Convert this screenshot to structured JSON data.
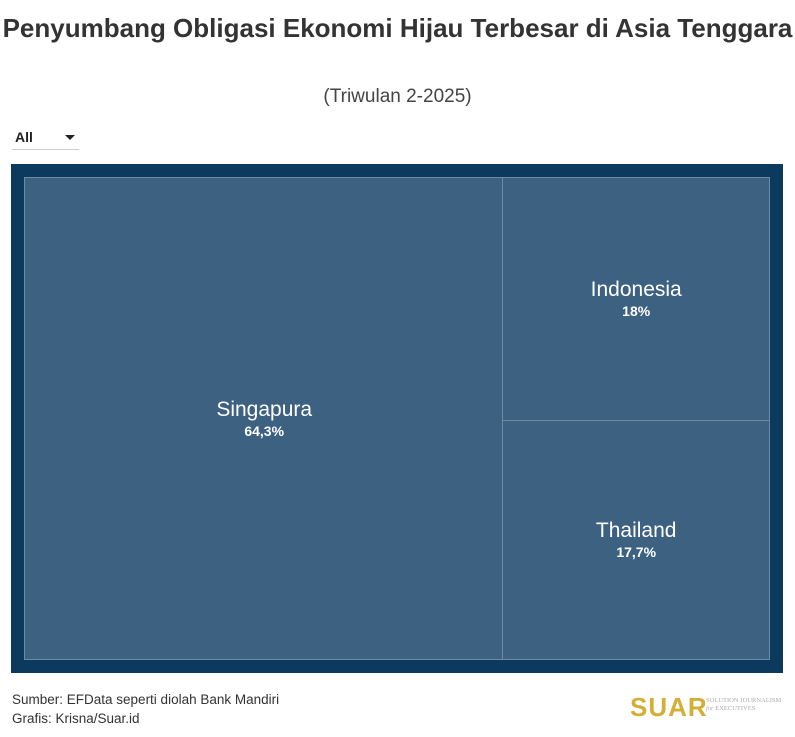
{
  "title": "Penyumbang Obligasi Ekonomi Hijau Terbesar di Asia Tenggara",
  "subtitle": "(Triwulan 2-2025)",
  "filter": {
    "selected": "All"
  },
  "chart_data": {
    "type": "treemap",
    "colors": {
      "frame": "#0b3a5e",
      "tile": "#3d6180"
    },
    "items": [
      {
        "label": "Singapura",
        "value": 64.3,
        "value_label": "64,3%"
      },
      {
        "label": "Indonesia",
        "value": 18,
        "value_label": "18%"
      },
      {
        "label": "Thailand",
        "value": 17.7,
        "value_label": "17,7%"
      }
    ]
  },
  "footer": {
    "source": "Sumber: EFData seperti diolah Bank Mandiri",
    "credit": "Grafis: Krisna/Suar.id"
  },
  "logo": {
    "text": "SUAR",
    "tagline1": "SOLUTION JOURNALISM",
    "tagline2": "for EXECUTIVES"
  }
}
